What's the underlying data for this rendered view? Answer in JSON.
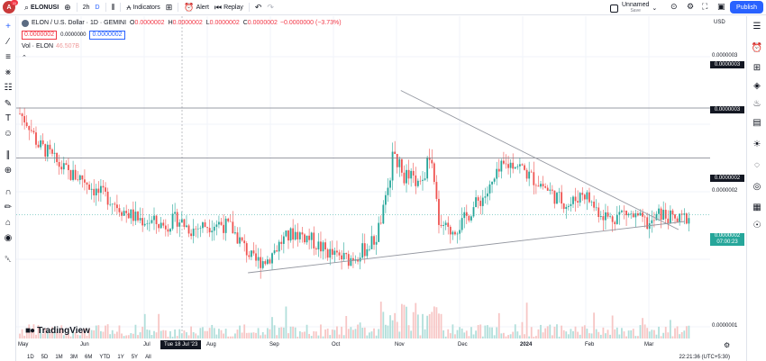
{
  "topbar": {
    "avatar_letter": "A",
    "avatar_badge": "11",
    "symbol": "ELONUSI",
    "interval_value": "2h",
    "chart_style": "D",
    "indicators_label": "Indicators",
    "alert_label": "Alert",
    "replay_label": "Replay",
    "layout_name": "Unnamed",
    "layout_status": "Save",
    "publish_label": "Publish"
  },
  "legend": {
    "title": "ELON / U.S. Dollar · 1D · GEMINI",
    "o_label": "O",
    "o_value": "0.0000002",
    "h_label": "H",
    "h_value": "0.0000002",
    "l_label": "L",
    "l_value": "0.0000002",
    "c_label": "C",
    "c_value": "0.0000002",
    "change": "−0.0000000 (−3.73%)",
    "bid": "0.0000002",
    "spread": "0.0000000",
    "ask": "0.0000002",
    "vol_label": "Vol · ELON",
    "vol_value": "46.507B"
  },
  "price_scale": {
    "currency": "USD",
    "labels": [
      "0.0000003",
      "0.0000002",
      "0.0000001"
    ],
    "tags": [
      "0.0000003",
      "0.0000003",
      "0.0000002"
    ],
    "last_price": "0.0000002",
    "countdown": "07:00:23"
  },
  "time_axis": {
    "labels": [
      "May",
      "Jun",
      "Jul",
      "Aug",
      "Sep",
      "Oct",
      "Nov",
      "Dec",
      "2024",
      "Feb",
      "Mar"
    ],
    "crosshair_date": "Tue 18 Jul '23"
  },
  "range_bar": [
    "1D",
    "5D",
    "1M",
    "3M",
    "6M",
    "YTD",
    "1Y",
    "5Y",
    "All"
  ],
  "clock": "22:21:36 (UTC+5:30)",
  "branding": "TradingView",
  "colors": {
    "up": "#26a69a",
    "down": "#ef5350",
    "accent": "#2962ff",
    "trendline": "#9598a1"
  },
  "chart_data": {
    "type": "candlestick",
    "symbol": "ELON / U.S. Dollar",
    "interval": "1D",
    "exchange": "GEMINI",
    "x_range": [
      "2023-05-01",
      "2024-03-10"
    ],
    "y_scale_labels": [
      3e-07,
      2e-07,
      1e-07
    ],
    "path_close": [
      [
        0,
        0.258
      ],
      [
        0.01,
        0.25
      ],
      [
        0.02,
        0.235
      ],
      [
        0.03,
        0.23
      ],
      [
        0.04,
        0.222
      ],
      [
        0.055,
        0.213
      ],
      [
        0.07,
        0.21
      ],
      [
        0.085,
        0.2
      ],
      [
        0.1,
        0.195
      ],
      [
        0.115,
        0.186
      ],
      [
        0.13,
        0.18
      ],
      [
        0.145,
        0.178
      ],
      [
        0.16,
        0.175
      ],
      [
        0.175,
        0.18
      ],
      [
        0.19,
        0.172
      ],
      [
        0.205,
        0.175
      ],
      [
        0.22,
        0.177
      ],
      [
        0.235,
        0.173
      ],
      [
        0.25,
        0.158
      ],
      [
        0.26,
        0.148
      ],
      [
        0.275,
        0.15
      ],
      [
        0.29,
        0.163
      ],
      [
        0.305,
        0.17
      ],
      [
        0.32,
        0.166
      ],
      [
        0.335,
        0.158
      ],
      [
        0.35,
        0.152
      ],
      [
        0.365,
        0.15
      ],
      [
        0.38,
        0.156
      ],
      [
        0.395,
        0.165
      ],
      [
        0.405,
        0.19
      ],
      [
        0.415,
        0.23
      ],
      [
        0.425,
        0.212
      ],
      [
        0.435,
        0.21
      ],
      [
        0.445,
        0.203
      ],
      [
        0.455,
        0.227
      ],
      [
        0.465,
        0.18
      ],
      [
        0.475,
        0.17
      ],
      [
        0.49,
        0.176
      ],
      [
        0.505,
        0.19
      ],
      [
        0.52,
        0.2
      ],
      [
        0.535,
        0.218
      ],
      [
        0.55,
        0.222
      ],
      [
        0.565,
        0.212
      ],
      [
        0.58,
        0.205
      ],
      [
        0.595,
        0.196
      ],
      [
        0.61,
        0.19
      ],
      [
        0.625,
        0.2
      ],
      [
        0.64,
        0.187
      ],
      [
        0.655,
        0.18
      ],
      [
        0.67,
        0.185
      ],
      [
        0.685,
        0.18
      ],
      [
        0.7,
        0.175
      ],
      [
        0.71,
        0.184
      ],
      [
        0.72,
        0.181
      ],
      [
        0.73,
        0.178
      ],
      [
        0.745,
        0.183
      ]
    ],
    "trendlines": [
      {
        "from": [
          "2023-10-25",
          2.75e-07
        ],
        "to": [
          "2024-03-02",
          1.72e-07
        ]
      },
      {
        "from": [
          "2023-08-15",
          1.4e-07
        ],
        "to": [
          "2024-03-05",
          1.78e-07
        ]
      }
    ],
    "horizontal_lines": [
      2.62e-07,
      2.25e-07
    ],
    "volume_indicator": "Vol · ELON",
    "last_volume": "46.507B"
  }
}
